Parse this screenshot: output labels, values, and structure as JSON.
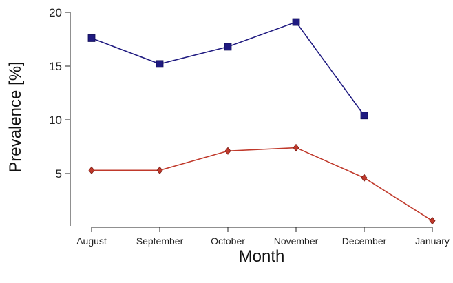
{
  "chart_data": {
    "type": "line",
    "title": "",
    "xlabel": "Month",
    "ylabel": "Prevalence [%]",
    "categories": [
      "August",
      "September",
      "October",
      "November",
      "December",
      "January"
    ],
    "ylim": [
      0,
      20
    ],
    "yticks": [
      5,
      10,
      15,
      20
    ],
    "grid": false,
    "legend": "none",
    "series": [
      {
        "marker": "square",
        "color": "#1f1a80",
        "values": [
          17.6,
          15.2,
          16.8,
          19.1,
          10.4,
          null
        ]
      },
      {
        "marker": "diamond",
        "color": "#c0392b",
        "values": [
          5.3,
          5.3,
          7.1,
          7.4,
          4.6,
          0.6
        ]
      }
    ]
  }
}
